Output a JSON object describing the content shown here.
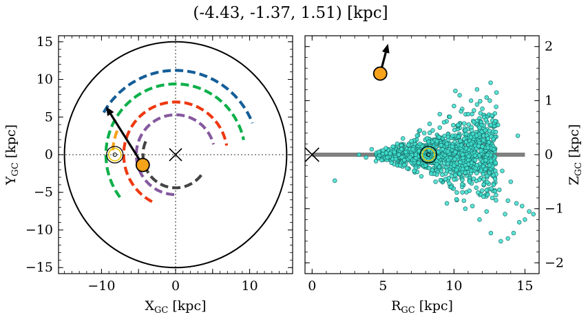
{
  "chart_data": [
    {
      "type": "line",
      "panel": "left",
      "title": "(-4.43, -1.37, 1.51) [kpc]",
      "xlabel_main": "X",
      "xlabel_sub": "GC",
      "xlabel_unit": " [kpc]",
      "ylabel_main": "Y",
      "ylabel_sub": "GC",
      "ylabel_unit": " [kpc]",
      "xlim": [
        -15.8,
        15.8
      ],
      "ylim": [
        -15.8,
        15.8
      ],
      "xticks": [
        -10,
        -5,
        0,
        5,
        10
      ],
      "xtick_labels": [
        "−10",
        "",
        "0",
        "",
        "10"
      ],
      "yticks": [
        -15,
        -10,
        -5,
        0,
        5,
        10,
        15
      ],
      "ytick_labels": [
        "−15",
        "−10",
        "−5",
        "0",
        "5",
        "10",
        "15"
      ],
      "boundary_circle_radius": 15,
      "galactic_center": [
        0,
        0
      ],
      "sun": [
        -8.2,
        0
      ],
      "star": [
        -4.43,
        -1.37
      ],
      "star_velocity_arrow": {
        "from": [
          -4.43,
          -1.37
        ],
        "to": [
          -9.4,
          6.4
        ]
      },
      "series": [
        {
          "color": "#155e98",
          "radius": 11.2,
          "theta_start": 150,
          "theta_end": 22
        },
        {
          "color": "#0cb04a",
          "radius": 9.4,
          "theta_start": 217,
          "theta_end": 12
        },
        {
          "color": "#ee3811",
          "radius": 7.0,
          "theta_start": 243,
          "theta_end": 10
        },
        {
          "color": "#85599f",
          "radius": 5.3,
          "theta_start": 268,
          "theta_end": 15
        },
        {
          "color": "#444444",
          "radius": 4.4,
          "theta_start": 322,
          "theta_end": 155
        },
        {
          "color": "#f6a21a",
          "radius": 8.5,
          "theta_start": 158,
          "theta_end": 176
        }
      ]
    },
    {
      "type": "scatter",
      "panel": "right",
      "xlabel_main": "R",
      "xlabel_sub": "GC",
      "xlabel_unit": " [kpc]",
      "ylabel_main": "Z",
      "ylabel_sub": "GC",
      "ylabel_unit": " [kpc]",
      "xlim": [
        -0.5,
        16
      ],
      "ylim": [
        -2.2,
        2.2
      ],
      "xticks": [
        0,
        5,
        10,
        15
      ],
      "xtick_labels": [
        "0",
        "5",
        "10",
        "15"
      ],
      "yticks": [
        -2,
        -1,
        0,
        1,
        2
      ],
      "ytick_labels": [
        "−2",
        "−1",
        "0",
        "1",
        "2"
      ],
      "disk_line": {
        "from": [
          0,
          0
        ],
        "to": [
          15,
          0
        ],
        "color": "#808080"
      },
      "galactic_center": [
        0,
        0
      ],
      "sun": [
        8.2,
        0
      ],
      "star": [
        4.8,
        1.5
      ],
      "star_velocity_arrow": {
        "from": [
          4.8,
          1.5
        ],
        "to": [
          5.35,
          2.05
        ]
      },
      "point_color": "#40e0d0",
      "scatter_points": [
        [
          1.6,
          -0.48
        ],
        [
          3.3,
          0.0
        ],
        [
          3.8,
          -0.05
        ],
        [
          4.2,
          0.1
        ],
        [
          4.5,
          -0.12
        ],
        [
          4.7,
          0.05
        ],
        [
          4.9,
          -0.1
        ],
        [
          5.0,
          0.08
        ],
        [
          5.2,
          0.12
        ],
        [
          5.3,
          -0.05
        ],
        [
          5.5,
          0.02
        ],
        [
          5.6,
          -0.15
        ],
        [
          5.7,
          0.15
        ],
        [
          5.8,
          0.05
        ],
        [
          5.9,
          -0.08
        ],
        [
          6.0,
          0.2
        ],
        [
          6.1,
          0.0
        ],
        [
          6.2,
          -0.2
        ],
        [
          6.3,
          0.1
        ],
        [
          6.4,
          0.3
        ],
        [
          6.5,
          -0.1
        ],
        [
          6.6,
          0.05
        ],
        [
          6.7,
          -0.25
        ],
        [
          6.8,
          0.18
        ],
        [
          6.9,
          -0.05
        ],
        [
          7.0,
          0.25
        ],
        [
          7.1,
          0.1
        ],
        [
          7.2,
          -0.3
        ],
        [
          7.3,
          0.0
        ],
        [
          7.4,
          0.35
        ],
        [
          7.5,
          -0.15
        ],
        [
          7.6,
          0.2
        ],
        [
          7.7,
          -0.4
        ],
        [
          7.8,
          0.05
        ],
        [
          7.9,
          0.4
        ],
        [
          8.0,
          -0.2
        ],
        [
          8.1,
          0.3
        ],
        [
          8.2,
          -0.1
        ],
        [
          8.3,
          0.15
        ],
        [
          8.4,
          -0.35
        ],
        [
          8.5,
          0.45
        ],
        [
          8.6,
          0.0
        ],
        [
          8.7,
          -0.5
        ],
        [
          8.8,
          0.25
        ],
        [
          8.9,
          -0.05
        ],
        [
          9.0,
          0.5
        ],
        [
          9.1,
          -0.3
        ],
        [
          9.2,
          0.1
        ],
        [
          9.3,
          0.6
        ],
        [
          9.4,
          -0.45
        ],
        [
          9.5,
          0.2
        ],
        [
          9.6,
          -0.1
        ],
        [
          9.7,
          0.7
        ],
        [
          9.8,
          -0.6
        ],
        [
          9.9,
          0.35
        ],
        [
          10.0,
          -0.2
        ],
        [
          10.0,
          0.9
        ],
        [
          10.1,
          0.05
        ],
        [
          10.2,
          -0.7
        ],
        [
          10.3,
          0.55
        ],
        [
          10.4,
          -0.35
        ],
        [
          10.5,
          0.8
        ],
        [
          10.6,
          0.0
        ],
        [
          10.7,
          -0.85
        ],
        [
          10.8,
          0.45
        ],
        [
          10.9,
          -0.25
        ],
        [
          11.0,
          0.75
        ],
        [
          11.1,
          -0.5
        ],
        [
          11.2,
          0.2
        ],
        [
          11.3,
          -0.95
        ],
        [
          11.4,
          0.6
        ],
        [
          11.5,
          -0.1
        ],
        [
          11.6,
          0.35
        ],
        [
          11.7,
          -0.7
        ],
        [
          11.8,
          0.5
        ],
        [
          11.9,
          -0.3
        ],
        [
          12.0,
          0.15
        ],
        [
          12.1,
          -0.55
        ],
        [
          12.2,
          0.45
        ],
        [
          12.3,
          -1.05
        ],
        [
          12.4,
          0.3
        ],
        [
          12.5,
          -0.2
        ],
        [
          12.6,
          0.55
        ],
        [
          12.7,
          -0.8
        ],
        [
          12.8,
          0.1
        ],
        [
          12.9,
          -0.45
        ],
        [
          13.0,
          1.15
        ],
        [
          13.2,
          -0.65
        ],
        [
          13.4,
          -0.3
        ],
        [
          13.6,
          -1.1
        ],
        [
          13.8,
          -0.85
        ],
        [
          14.0,
          -0.5
        ],
        [
          14.2,
          -1.45
        ],
        [
          14.4,
          -0.9
        ],
        [
          14.6,
          -1.25
        ],
        [
          14.8,
          -0.95
        ],
        [
          15.0,
          -1.2
        ],
        [
          15.3,
          -1.05
        ],
        [
          15.6,
          -1.1
        ],
        [
          10.1,
          1.18
        ],
        [
          10.4,
          1.1
        ],
        [
          9.5,
          -0.9
        ],
        [
          11.2,
          1.0
        ],
        [
          13.3,
          -1.6
        ],
        [
          13.8,
          -1.55
        ],
        [
          12.6,
          -1.45
        ],
        [
          11.8,
          -1.2
        ],
        [
          10.8,
          -1.0
        ],
        [
          13.1,
          0.55
        ],
        [
          14.5,
          0.35
        ],
        [
          12.0,
          0.85
        ],
        [
          9.0,
          0.75
        ],
        [
          7.6,
          0.45
        ]
      ]
    }
  ]
}
